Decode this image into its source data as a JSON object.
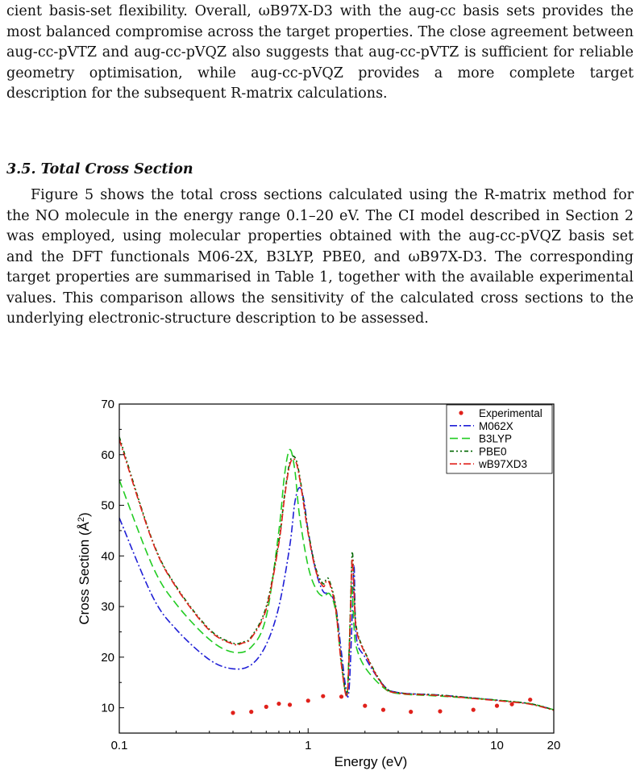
{
  "paragraphs": [
    "cient basis-set flexibility. Overall, ωB97X-D3 with the aug-cc basis sets provides the most balanced compromise across the target properties. The close agreement between aug-cc-pVTZ and aug-cc-pVQZ also suggests that aug-cc-pVTZ is sufficient for reliable geometry optimisation, while aug-cc-pVQZ provides a more complete target description for the subsequent R-matrix calculations.",
    "Figure 5 shows the total cross sections calculated using the R-matrix method for the NO molecule in the energy range 0.1–20 eV. The CI model described in Section 2 was employed, using molecular properties obtained with the aug-cc-pVQZ basis set and the DFT functionals M06-2X, B3LYP, PBE0, and ωB97X-D3. The corresponding target properties are summarised in Table 1, together with the available experimental values. This comparison allows the sensitivity of the calculated cross sections to the underlying electronic-structure description to be assessed."
  ],
  "section_heading": "3.5. Total Cross Section",
  "chart_data": {
    "type": "line",
    "xlabel": "Energy (eV)",
    "ylabel_prefix": "Cross Section (Å",
    "ylabel_sup": "2",
    "ylabel_suffix": ")",
    "xscale": "log",
    "xlim": [
      0.1,
      20
    ],
    "ylim": [
      5,
      70
    ],
    "xticks": [
      {
        "value": 0.1,
        "label": "0.1"
      },
      {
        "value": 1,
        "label": "1"
      },
      {
        "value": 10,
        "label": "10"
      },
      {
        "value": 20,
        "label": "20"
      }
    ],
    "yticks": [
      10,
      20,
      30,
      40,
      50,
      60,
      70
    ],
    "legend_position": "top-right",
    "series": [
      {
        "name": "Experimental",
        "kind": "scatter",
        "color": "#e0211b",
        "x": [
          0.4,
          0.5,
          0.6,
          0.7,
          0.8,
          1.0,
          1.2,
          1.5,
          2.0,
          2.5,
          3.5,
          5,
          7.5,
          10,
          12,
          15
        ],
        "y": [
          9.0,
          9.2,
          10.2,
          10.8,
          10.6,
          11.4,
          12.3,
          12.2,
          10.4,
          9.6,
          9.2,
          9.3,
          9.6,
          10.4,
          10.7,
          11.6
        ]
      },
      {
        "name": "M062X",
        "kind": "line",
        "color": "#1f1fd6",
        "dash": "9,3,2,3",
        "x": [
          0.1,
          0.15,
          0.2,
          0.3,
          0.4,
          0.5,
          0.6,
          0.7,
          0.8,
          0.85,
          0.9,
          0.95,
          1.0,
          1.1,
          1.2,
          1.3,
          1.4,
          1.5,
          1.6,
          1.65,
          1.7,
          1.75,
          1.8,
          2.0,
          2.5,
          3,
          5,
          10,
          15,
          20
        ],
        "y": [
          47.5,
          32.0,
          25.5,
          19.5,
          17.7,
          18.5,
          22.5,
          30.0,
          42.0,
          50.5,
          53.5,
          51.0,
          45.0,
          37.0,
          33.0,
          32.5,
          30.0,
          21.0,
          12.8,
          14.0,
          25.0,
          38.0,
          24.0,
          20.0,
          14.5,
          13.0,
          12.5,
          11.5,
          10.8,
          9.6
        ]
      },
      {
        "name": "B3LYP",
        "kind": "line",
        "color": "#22cc22",
        "dash": "10,5",
        "x": [
          0.1,
          0.15,
          0.2,
          0.3,
          0.4,
          0.5,
          0.6,
          0.7,
          0.75,
          0.8,
          0.85,
          0.9,
          1.0,
          1.1,
          1.2,
          1.3,
          1.4,
          1.5,
          1.6,
          1.65,
          1.7,
          1.75,
          1.8,
          2.0,
          2.5,
          3,
          5,
          10,
          15,
          20
        ],
        "y": [
          55.0,
          38.0,
          30.5,
          23.5,
          21.0,
          22.0,
          28.0,
          45.0,
          56.0,
          61.0,
          57.0,
          48.0,
          38.0,
          33.5,
          32.0,
          32.5,
          29.0,
          19.0,
          12.5,
          22.0,
          34.0,
          26.0,
          22.0,
          18.0,
          14.0,
          12.8,
          12.3,
          11.5,
          10.8,
          9.6
        ]
      },
      {
        "name": "PBE0",
        "kind": "line",
        "color": "#006600",
        "dash": "5,3,2,3,2,3",
        "x": [
          0.1,
          0.15,
          0.2,
          0.3,
          0.4,
          0.45,
          0.5,
          0.6,
          0.7,
          0.75,
          0.8,
          0.85,
          0.9,
          1.0,
          1.1,
          1.2,
          1.25,
          1.3,
          1.4,
          1.5,
          1.6,
          1.65,
          1.7,
          1.72,
          1.75,
          1.8,
          2.0,
          2.5,
          3,
          5,
          10,
          15,
          20
        ],
        "y": [
          63.5,
          43.0,
          34.0,
          25.5,
          22.8,
          23.0,
          24.0,
          30.0,
          43.0,
          52.0,
          58.5,
          59.5,
          56.0,
          45.0,
          37.5,
          34.5,
          35.5,
          35.0,
          30.0,
          19.0,
          12.5,
          21.0,
          38.0,
          40.5,
          34.0,
          26.0,
          21.0,
          14.5,
          13.0,
          12.5,
          11.5,
          10.8,
          9.6
        ]
      },
      {
        "name": "wB97XD3",
        "kind": "line",
        "color": "#e0211b",
        "dash": "9,3,2,3",
        "x": [
          0.1,
          0.15,
          0.2,
          0.3,
          0.4,
          0.45,
          0.5,
          0.6,
          0.7,
          0.75,
          0.8,
          0.85,
          0.9,
          1.0,
          1.1,
          1.2,
          1.25,
          1.3,
          1.4,
          1.5,
          1.6,
          1.65,
          1.7,
          1.72,
          1.75,
          1.8,
          2.0,
          2.5,
          3,
          5,
          10,
          15,
          20
        ],
        "y": [
          63.0,
          42.8,
          33.8,
          25.3,
          22.6,
          22.8,
          23.8,
          29.5,
          42.5,
          51.5,
          58.0,
          59.0,
          55.5,
          44.5,
          37.0,
          34.0,
          35.0,
          34.5,
          29.5,
          18.5,
          12.3,
          20.5,
          37.0,
          39.0,
          33.0,
          25.5,
          20.8,
          14.3,
          12.9,
          12.4,
          11.4,
          10.7,
          9.5
        ]
      }
    ]
  }
}
